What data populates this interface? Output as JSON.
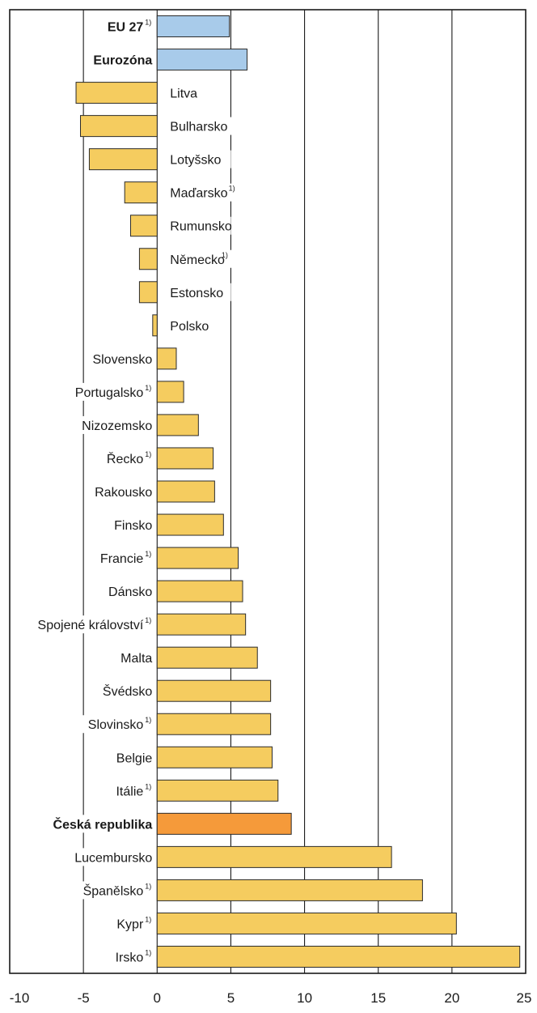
{
  "chart_data": {
    "type": "bar",
    "orientation": "horizontal",
    "title": "",
    "xlabel": "",
    "ylabel": "",
    "xlim": [
      -10,
      25
    ],
    "x_ticks": [
      -10,
      -5,
      0,
      5,
      10,
      15,
      20,
      25
    ],
    "x_tick_labels": [
      "-10",
      "-5",
      "0",
      "5",
      "10",
      "15",
      "20",
      "25"
    ],
    "grid": "vertical",
    "legend": "none",
    "colors": {
      "aggregate": "#a8cbea",
      "country": "#f5cc5f",
      "highlight": "#f59a3a",
      "edge": "#2b2b2b"
    },
    "footnote_mark": "1)",
    "categories": [
      {
        "label": "EU 27",
        "value": 4.9,
        "group": "aggregate",
        "bold": true,
        "footnote": true
      },
      {
        "label": "Eurozóna",
        "value": 6.1,
        "group": "aggregate",
        "bold": true,
        "footnote": false
      },
      {
        "label": "Litva",
        "value": -5.5,
        "group": "country",
        "bold": false,
        "footnote": false
      },
      {
        "label": "Bulharsko",
        "value": -5.2,
        "group": "country",
        "bold": false,
        "footnote": false
      },
      {
        "label": "Lotyšsko",
        "value": -4.6,
        "group": "country",
        "bold": false,
        "footnote": false
      },
      {
        "label": "Maďarsko",
        "value": -2.2,
        "group": "country",
        "bold": false,
        "footnote": true
      },
      {
        "label": "Rumunsko",
        "value": -1.8,
        "group": "country",
        "bold": false,
        "footnote": false
      },
      {
        "label": "Německo",
        "value": -1.2,
        "group": "country",
        "bold": false,
        "footnote": true
      },
      {
        "label": "Estonsko",
        "value": -1.2,
        "group": "country",
        "bold": false,
        "footnote": false
      },
      {
        "label": "Polsko",
        "value": -0.3,
        "group": "country",
        "bold": false,
        "footnote": false
      },
      {
        "label": "Slovensko",
        "value": 1.3,
        "group": "country",
        "bold": false,
        "footnote": false
      },
      {
        "label": "Portugalsko",
        "value": 1.8,
        "group": "country",
        "bold": false,
        "footnote": true
      },
      {
        "label": "Nizozemsko",
        "value": 2.8,
        "group": "country",
        "bold": false,
        "footnote": false
      },
      {
        "label": "Řecko",
        "value": 3.8,
        "group": "country",
        "bold": false,
        "footnote": true
      },
      {
        "label": "Rakousko",
        "value": 3.9,
        "group": "country",
        "bold": false,
        "footnote": false
      },
      {
        "label": "Finsko",
        "value": 4.5,
        "group": "country",
        "bold": false,
        "footnote": false
      },
      {
        "label": "Francie",
        "value": 5.5,
        "group": "country",
        "bold": false,
        "footnote": true
      },
      {
        "label": "Dánsko",
        "value": 5.8,
        "group": "country",
        "bold": false,
        "footnote": false
      },
      {
        "label": "Spojené království",
        "value": 6.0,
        "group": "country",
        "bold": false,
        "footnote": true
      },
      {
        "label": "Malta",
        "value": 6.8,
        "group": "country",
        "bold": false,
        "footnote": false
      },
      {
        "label": "Švédsko",
        "value": 7.7,
        "group": "country",
        "bold": false,
        "footnote": false
      },
      {
        "label": "Slovinsko",
        "value": 7.7,
        "group": "country",
        "bold": false,
        "footnote": true
      },
      {
        "label": "Belgie",
        "value": 7.8,
        "group": "country",
        "bold": false,
        "footnote": false
      },
      {
        "label": "Itálie",
        "value": 8.2,
        "group": "country",
        "bold": false,
        "footnote": true
      },
      {
        "label": "Česká republika",
        "value": 9.1,
        "group": "highlight",
        "bold": true,
        "footnote": false
      },
      {
        "label": "Lucembursko",
        "value": 15.9,
        "group": "country",
        "bold": false,
        "footnote": false
      },
      {
        "label": "Španělsko",
        "value": 18.0,
        "group": "country",
        "bold": false,
        "footnote": true
      },
      {
        "label": "Kypr",
        "value": 20.3,
        "group": "country",
        "bold": false,
        "footnote": true
      },
      {
        "label": "Irsko",
        "value": 24.6,
        "group": "country",
        "bold": false,
        "footnote": true
      }
    ]
  }
}
